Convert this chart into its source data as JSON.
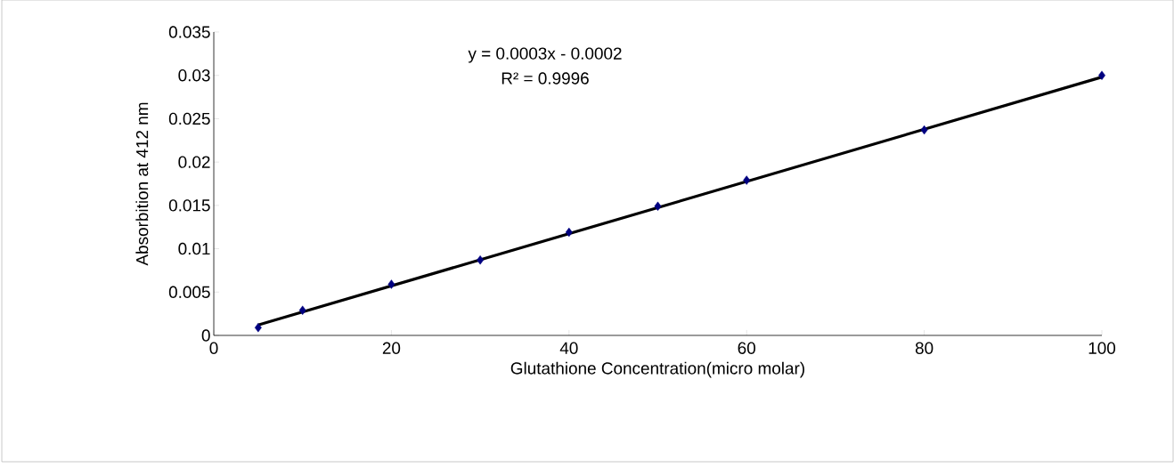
{
  "chart_data": {
    "type": "scatter",
    "xlabel": "Glutathione Concentration(micro molar)",
    "ylabel": "Absorbition at 412 nm",
    "annotations": [
      "y = 0.0003x - 0.0002",
      "R² = 0.9996"
    ],
    "xlim": [
      0,
      100
    ],
    "xticks": [
      0,
      20,
      40,
      60,
      80,
      100
    ],
    "ylim": [
      0,
      0.035
    ],
    "yticks": [
      0,
      0.005,
      0.01,
      0.015,
      0.02,
      0.025,
      0.03,
      0.035
    ],
    "grid": false,
    "series": [
      {
        "color": "#000080",
        "marker": "diamond",
        "x": [
          5,
          10,
          20,
          30,
          40,
          50,
          60,
          80,
          100
        ],
        "values": [
          0.0009,
          0.0029,
          0.0059,
          0.0087,
          0.0119,
          0.0149,
          0.0179,
          0.0237,
          0.03
        ]
      },
      {
        "type": "line",
        "color": "#000000",
        "marker": "none",
        "x": [
          5,
          100
        ],
        "values": [
          0.0012,
          0.0298
        ]
      }
    ]
  }
}
